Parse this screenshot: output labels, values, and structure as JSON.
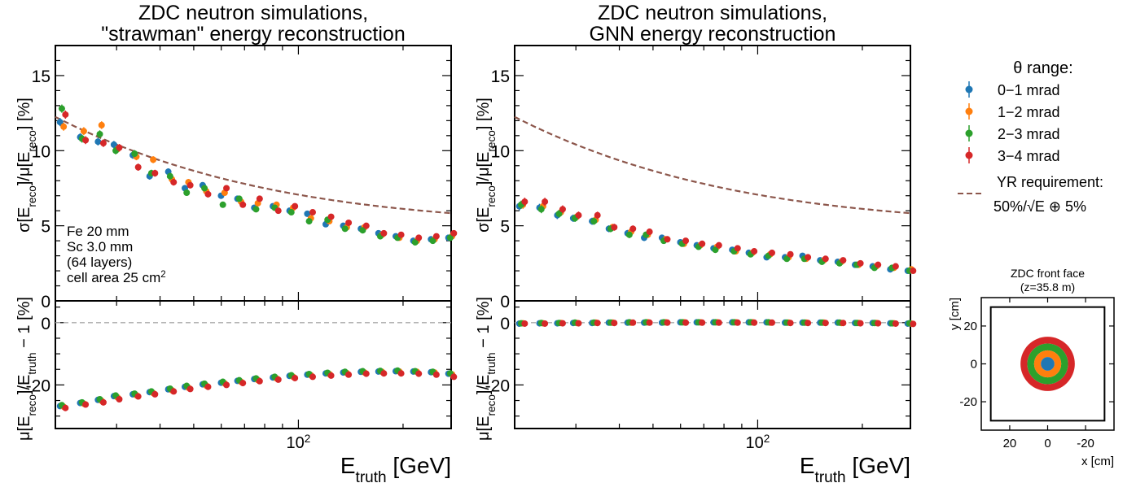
{
  "colors": {
    "theta_0_1": "#1f77b4",
    "theta_1_2": "#ff7f0e",
    "theta_2_3": "#2ca02c",
    "theta_3_4": "#d62728",
    "yr_requirement": "#8c564b",
    "reference_line": "#aaaaaa"
  },
  "legend": {
    "title": "θ range:",
    "entries": [
      "0−1 mrad",
      "1−2 mrad",
      "2−3 mrad",
      "3−4 mrad"
    ],
    "yr_label_line1": "YR requirement:",
    "yr_label_line2": "50%/√E ⊕ 5%"
  },
  "chart_data": [
    {
      "type": "scatter",
      "title_line1": "ZDC neutron simulations,",
      "title_line2": "\"strawman\" energy reconstruction",
      "xlabel": "E_truth [GeV]",
      "xscale": "log",
      "xlim": [
        20,
        275
      ],
      "x_tick_label": "10²",
      "grid": false,
      "annotation": [
        "Fe 20 mm",
        "Sc 3.0 mm",
        "(64 layers)",
        "cell area 25 cm²"
      ],
      "top": {
        "ylabel": "σ[E_reco]/μ[E_reco] [%]",
        "ylim": [
          0,
          17
        ],
        "yticks": [
          0,
          5,
          10,
          15
        ],
        "yr_requirement_curve": {
          "formula": "sqrt((50/sqrt(E))^2 + 5^2)"
        },
        "series": [
          {
            "name": "0−1 mrad",
            "x": [
              21,
              24,
              27,
              30,
              34,
              38,
              43,
              48,
              54,
              61,
              68,
              76,
              86,
              96,
              108,
              122,
              137,
              154,
              173,
              194,
              218,
              245,
              275
            ],
            "y": [
              11.9,
              10.9,
              10.6,
              10.4,
              9.7,
              8.3,
              8.6,
              7.5,
              7.7,
              7.0,
              6.8,
              6.2,
              6.3,
              6.0,
              5.8,
              5.1,
              5.0,
              4.8,
              4.5,
              4.3,
              4.0,
              4.1,
              4.2
            ]
          },
          {
            "name": "1−2 mrad",
            "x": [
              21,
              24,
              27,
              30,
              34,
              38,
              43,
              48,
              54,
              61,
              68,
              76,
              86,
              96,
              108,
              122,
              137,
              154,
              173,
              194,
              218,
              245,
              275
            ],
            "y": [
              11.6,
              11.3,
              11.7,
              10.1,
              9.6,
              9.4,
              8.1,
              7.9,
              7.3,
              7.2,
              6.6,
              6.5,
              6.4,
              6.2,
              5.5,
              5.3,
              4.9,
              4.9,
              4.4,
              4.2,
              4.0,
              4.1,
              4.3
            ]
          },
          {
            "name": "2−3 mrad",
            "x": [
              21,
              24,
              27,
              30,
              34,
              38,
              43,
              48,
              54,
              61,
              68,
              76,
              86,
              96,
              108,
              122,
              137,
              154,
              173,
              194,
              218,
              245,
              275
            ],
            "y": [
              12.8,
              10.8,
              11.1,
              10.0,
              9.8,
              8.5,
              8.3,
              7.2,
              7.5,
              6.4,
              6.8,
              6.1,
              6.2,
              5.9,
              5.3,
              5.4,
              4.8,
              4.7,
              4.3,
              4.2,
              3.9,
              4.0,
              4.2
            ]
          },
          {
            "name": "3−4 mrad",
            "x": [
              21,
              24,
              27,
              30,
              34,
              38,
              43,
              48,
              54,
              61,
              68,
              76,
              86,
              96,
              108,
              122,
              137,
              154,
              173,
              194,
              218,
              245,
              275
            ],
            "y": [
              12.4,
              10.7,
              10.5,
              10.2,
              8.9,
              8.5,
              7.9,
              7.7,
              7.1,
              7.5,
              6.4,
              6.8,
              6.0,
              6.3,
              5.9,
              5.6,
              5.2,
              5.0,
              4.5,
              4.4,
              4.2,
              4.3,
              4.5
            ]
          }
        ]
      },
      "bottom": {
        "ylabel": "μ[E_reco]/E_truth − 1 [%]",
        "ylim": [
          -34,
          7
        ],
        "yticks": [
          0,
          -20
        ],
        "reference_line_y": 0,
        "series": [
          {
            "name": "0−1 mrad",
            "x": [
              21,
              24,
              27,
              30,
              34,
              38,
              43,
              48,
              54,
              61,
              68,
              76,
              86,
              96,
              108,
              122,
              137,
              154,
              173,
              194,
              218,
              245,
              275
            ],
            "y": [
              -26.8,
              -25.8,
              -24.8,
              -23.6,
              -23.0,
              -22.3,
              -21.4,
              -20.6,
              -19.8,
              -19.3,
              -18.7,
              -18.1,
              -17.6,
              -17.1,
              -16.7,
              -16.3,
              -16.0,
              -15.8,
              -15.7,
              -15.6,
              -15.7,
              -15.9,
              -16.4
            ]
          },
          {
            "name": "1−2 mrad",
            "x": [
              21,
              24,
              27,
              30,
              34,
              38,
              43,
              48,
              54,
              61,
              68,
              76,
              86,
              96,
              108,
              122,
              137,
              154,
              173,
              194,
              218,
              245,
              275
            ],
            "y": [
              -27.0,
              -26.0,
              -25.1,
              -24.0,
              -23.3,
              -22.6,
              -21.7,
              -20.9,
              -20.2,
              -19.5,
              -19.0,
              -18.4,
              -17.9,
              -17.4,
              -16.9,
              -16.5,
              -16.2,
              -16.0,
              -15.8,
              -15.7,
              -15.8,
              -16.0,
              -16.6
            ]
          },
          {
            "name": "2−3 mrad",
            "x": [
              21,
              24,
              27,
              30,
              34,
              38,
              43,
              48,
              54,
              61,
              68,
              76,
              86,
              96,
              108,
              122,
              137,
              154,
              173,
              194,
              218,
              245,
              275
            ],
            "y": [
              -26.5,
              -25.6,
              -24.6,
              -23.4,
              -22.8,
              -22.1,
              -21.2,
              -20.3,
              -19.6,
              -19.0,
              -18.5,
              -17.9,
              -17.4,
              -16.9,
              -16.5,
              -16.1,
              -15.8,
              -15.6,
              -15.5,
              -15.4,
              -15.6,
              -15.8,
              -16.3
            ]
          },
          {
            "name": "3−4 mrad",
            "x": [
              21,
              24,
              27,
              30,
              34,
              38,
              43,
              48,
              54,
              61,
              68,
              76,
              86,
              96,
              108,
              122,
              137,
              154,
              173,
              194,
              218,
              245,
              275
            ],
            "y": [
              -27.4,
              -26.3,
              -25.6,
              -24.6,
              -23.7,
              -23.0,
              -22.1,
              -21.3,
              -20.6,
              -20.0,
              -19.4,
              -18.8,
              -18.3,
              -17.8,
              -17.4,
              -17.0,
              -16.7,
              -16.4,
              -16.3,
              -16.3,
              -16.4,
              -16.7,
              -17.4
            ]
          }
        ]
      }
    },
    {
      "type": "scatter",
      "title_line1": "ZDC neutron simulations,",
      "title_line2": "GNN energy reconstruction",
      "xlabel": "E_truth [GeV]",
      "xscale": "log",
      "xlim": [
        20,
        275
      ],
      "x_tick_label": "10²",
      "grid": false,
      "top": {
        "ylabel": "σ[E_reco]/μ[E_reco] [%]",
        "ylim": [
          0,
          17
        ],
        "yticks": [
          0,
          5,
          10,
          15
        ],
        "yr_requirement_curve": {
          "formula": "sqrt((50/sqrt(E))^2 + 5^2)"
        },
        "series": [
          {
            "name": "0−1 mrad",
            "x": [
              21,
              24,
              27,
              30,
              34,
              38,
              43,
              48,
              54,
              61,
              68,
              76,
              86,
              96,
              108,
              122,
              137,
              154,
              173,
              194,
              218,
              245,
              275
            ],
            "y": [
              6.3,
              6.2,
              5.7,
              5.5,
              5.3,
              4.8,
              4.5,
              4.2,
              4.2,
              3.9,
              3.7,
              3.5,
              3.4,
              3.2,
              2.9,
              2.9,
              3.0,
              2.7,
              2.6,
              2.4,
              2.3,
              2.1,
              2.0
            ]
          },
          {
            "name": "1−2 mrad",
            "x": [
              21,
              24,
              27,
              30,
              34,
              38,
              43,
              48,
              54,
              61,
              68,
              76,
              86,
              96,
              108,
              122,
              137,
              154,
              173,
              194,
              218,
              245,
              275
            ],
            "y": [
              6.4,
              6.3,
              5.9,
              5.6,
              5.4,
              4.9,
              4.6,
              4.4,
              4.1,
              3.8,
              3.7,
              3.6,
              3.3,
              3.2,
              3.1,
              2.9,
              2.8,
              2.7,
              2.6,
              2.4,
              2.3,
              2.2,
              2.1
            ]
          },
          {
            "name": "2−3 mrad",
            "x": [
              21,
              24,
              27,
              30,
              34,
              38,
              43,
              48,
              54,
              61,
              68,
              76,
              86,
              96,
              108,
              122,
              137,
              154,
              173,
              194,
              218,
              245,
              275
            ],
            "y": [
              6.4,
              6.1,
              5.8,
              5.5,
              5.3,
              4.8,
              4.4,
              4.4,
              4.0,
              3.8,
              3.6,
              3.4,
              3.3,
              3.1,
              3.0,
              2.8,
              2.8,
              2.6,
              2.5,
              2.4,
              2.2,
              2.2,
              2.0
            ]
          },
          {
            "name": "3−4 mrad",
            "x": [
              21,
              24,
              27,
              30,
              34,
              38,
              43,
              48,
              54,
              61,
              68,
              76,
              86,
              96,
              108,
              122,
              137,
              154,
              173,
              194,
              218,
              245,
              275
            ],
            "y": [
              6.6,
              6.6,
              6.1,
              5.7,
              5.7,
              4.9,
              4.8,
              4.6,
              4.1,
              4.0,
              3.8,
              3.7,
              3.5,
              3.3,
              3.2,
              3.1,
              2.9,
              2.8,
              2.7,
              2.5,
              2.4,
              2.3,
              2.0
            ]
          }
        ]
      },
      "bottom": {
        "ylabel": "μ[E_reco]/E_truth − 1 [%]",
        "ylim": [
          -34,
          7
        ],
        "yticks": [
          0,
          -20
        ],
        "reference_line_y": 0,
        "series": [
          {
            "name": "0−1 mrad",
            "x": [
              21,
              24,
              27,
              30,
              34,
              38,
              43,
              48,
              54,
              61,
              68,
              76,
              86,
              96,
              108,
              122,
              137,
              154,
              173,
              194,
              218,
              245,
              275
            ],
            "y": [
              -0.3,
              -0.2,
              -0.2,
              -0.1,
              -0.1,
              0.0,
              0.0,
              0.0,
              0.0,
              0.1,
              0.1,
              0.1,
              0.1,
              0.1,
              0.1,
              0.0,
              0.0,
              0.0,
              0.0,
              -0.1,
              -0.1,
              -0.2,
              -0.3
            ]
          },
          {
            "name": "1−2 mrad",
            "x": [
              21,
              24,
              27,
              30,
              34,
              38,
              43,
              48,
              54,
              61,
              68,
              76,
              86,
              96,
              108,
              122,
              137,
              154,
              173,
              194,
              218,
              245,
              275
            ],
            "y": [
              -0.2,
              -0.2,
              -0.1,
              -0.1,
              0.0,
              0.0,
              0.0,
              0.1,
              0.1,
              0.1,
              0.1,
              0.1,
              0.1,
              0.1,
              0.0,
              0.0,
              0.0,
              0.0,
              -0.1,
              -0.1,
              -0.1,
              -0.2,
              -0.3
            ]
          },
          {
            "name": "2−3 mrad",
            "x": [
              21,
              24,
              27,
              30,
              34,
              38,
              43,
              48,
              54,
              61,
              68,
              76,
              86,
              96,
              108,
              122,
              137,
              154,
              173,
              194,
              218,
              245,
              275
            ],
            "y": [
              -0.2,
              -0.1,
              -0.1,
              0.0,
              0.0,
              0.0,
              0.1,
              0.1,
              0.1,
              0.1,
              0.1,
              0.1,
              0.1,
              0.1,
              0.1,
              0.0,
              0.0,
              0.0,
              0.0,
              -0.1,
              -0.1,
              -0.2,
              -0.2
            ]
          },
          {
            "name": "3−4 mrad",
            "x": [
              21,
              24,
              27,
              30,
              34,
              38,
              43,
              48,
              54,
              61,
              68,
              76,
              86,
              96,
              108,
              122,
              137,
              154,
              173,
              194,
              218,
              245,
              275
            ],
            "y": [
              -0.3,
              -0.3,
              -0.2,
              -0.2,
              -0.1,
              -0.1,
              0.0,
              0.0,
              0.0,
              0.0,
              0.0,
              0.0,
              0.0,
              0.0,
              0.0,
              -0.1,
              -0.1,
              -0.1,
              -0.1,
              -0.2,
              -0.2,
              -0.3,
              -0.4
            ]
          }
        ]
      }
    },
    {
      "type": "diagram",
      "title_line1": "ZDC front face",
      "title_line2": "(z=35.8 m)",
      "xlabel": "x [cm]",
      "ylabel": "y [cm]",
      "xlim": [
        35,
        -35
      ],
      "ylim": [
        -35,
        35
      ],
      "xticks": [
        20,
        0,
        -20
      ],
      "yticks": [
        20,
        0,
        -20
      ],
      "detector_square": {
        "xmin": -30,
        "xmax": 30,
        "ymin": -30,
        "ymax": 30
      },
      "rings_mrad": [
        {
          "name": "3−4 mrad",
          "inner": 3,
          "outer": 4
        },
        {
          "name": "2−3 mrad",
          "inner": 2,
          "outer": 3
        },
        {
          "name": "1−2 mrad",
          "inner": 1,
          "outer": 2
        },
        {
          "name": "0−1 mrad",
          "inner": 0,
          "outer": 1
        }
      ],
      "cm_per_mrad": 3.58
    }
  ]
}
